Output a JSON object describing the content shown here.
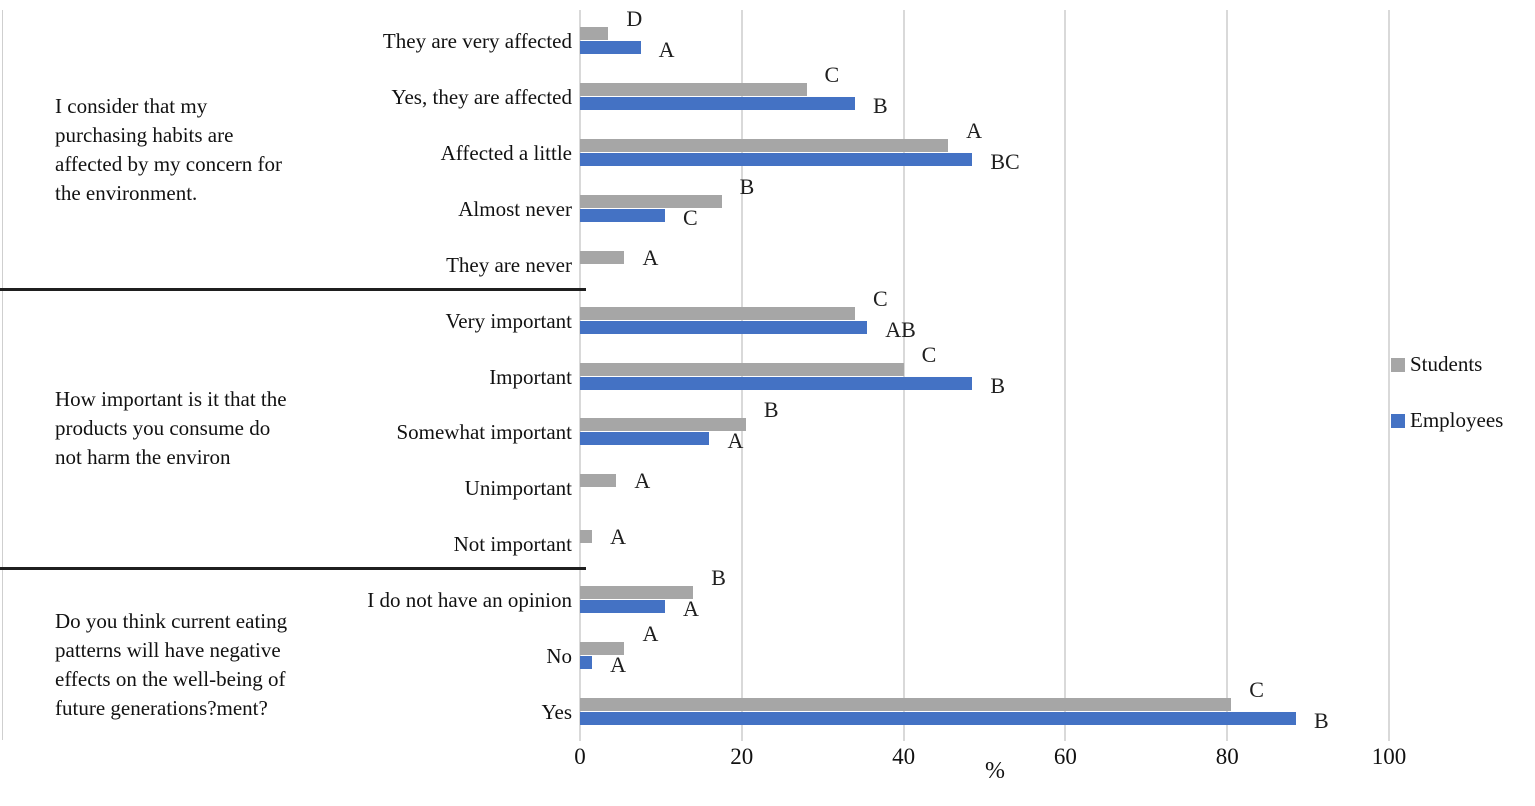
{
  "chart_data": {
    "type": "bar",
    "orientation": "horizontal",
    "title": "",
    "xlabel": "%",
    "x_ticks": [
      0,
      20,
      40,
      60,
      80,
      100
    ],
    "xlim": [
      0,
      100
    ],
    "grid": "vertical-on",
    "legend_position": "right",
    "legend": [
      {
        "name": "Students",
        "color": "#a6a6a6"
      },
      {
        "name": "Employees",
        "color": "#4472c4"
      }
    ],
    "colors": {
      "students": "#a6a6a6",
      "employees": "#4472c4",
      "gridline": "#d9d9d9",
      "divider": "#1f1f1f"
    },
    "groups": [
      {
        "question": "I consider that my purchasing habits are affected by my concern for the environment.",
        "question_lines": [
          "I consider that my",
          "purchasing habits are",
          "affected by my concern for",
          "the environment."
        ],
        "rows": [
          {
            "label": "They are very affected",
            "students": {
              "value": 3.5,
              "letter": "D"
            },
            "employees": {
              "value": 7.5,
              "letter": "A"
            }
          },
          {
            "label": "Yes, they are affected",
            "students": {
              "value": 28,
              "letter": "C"
            },
            "employees": {
              "value": 34,
              "letter": "B"
            }
          },
          {
            "label": "Affected a little",
            "students": {
              "value": 45.5,
              "letter": "A"
            },
            "employees": {
              "value": 48.5,
              "letter": "BC"
            }
          },
          {
            "label": "Almost never",
            "students": {
              "value": 17.5,
              "letter": "B"
            },
            "employees": {
              "value": 10.5,
              "letter": "C"
            }
          },
          {
            "label": "They are never",
            "students": {
              "value": 5.5,
              "letter": "A"
            },
            "employees": null
          }
        ]
      },
      {
        "question": "How important is it that the products you consume do not harm the environ",
        "question_lines": [
          "How important is it that the",
          "products you consume do",
          "not harm the environ"
        ],
        "rows": [
          {
            "label": "Very important",
            "students": {
              "value": 34,
              "letter": "C"
            },
            "employees": {
              "value": 35.5,
              "letter": "AB"
            }
          },
          {
            "label": "Important",
            "students": {
              "value": 40,
              "letter": "C"
            },
            "employees": {
              "value": 48.5,
              "letter": "B"
            }
          },
          {
            "label": "Somewhat important",
            "students": {
              "value": 20.5,
              "letter": "B"
            },
            "employees": {
              "value": 16,
              "letter": "A"
            }
          },
          {
            "label": "Unimportant",
            "students": {
              "value": 4.5,
              "letter": "A"
            },
            "employees": null
          },
          {
            "label": "Not important",
            "students": {
              "value": 1.5,
              "letter": "A"
            },
            "employees": null
          }
        ]
      },
      {
        "question": "Do you think current eating patterns will have negative effects on the well-being of future generations?ment?",
        "question_lines": [
          "Do you think current eating",
          "patterns will have negative",
          "effects on the well-being of",
          "future generations?ment?"
        ],
        "rows": [
          {
            "label": "I do not have an opinion",
            "students": {
              "value": 14,
              "letter": "B"
            },
            "employees": {
              "value": 10.5,
              "letter": "A"
            }
          },
          {
            "label": "No",
            "students": {
              "value": 5.5,
              "letter": "A"
            },
            "employees": {
              "value": 1.5,
              "letter": "A"
            }
          },
          {
            "label": "Yes",
            "students": {
              "value": 80.5,
              "letter": "C"
            },
            "employees": {
              "value": 88.5,
              "letter": "B"
            }
          }
        ]
      }
    ]
  }
}
